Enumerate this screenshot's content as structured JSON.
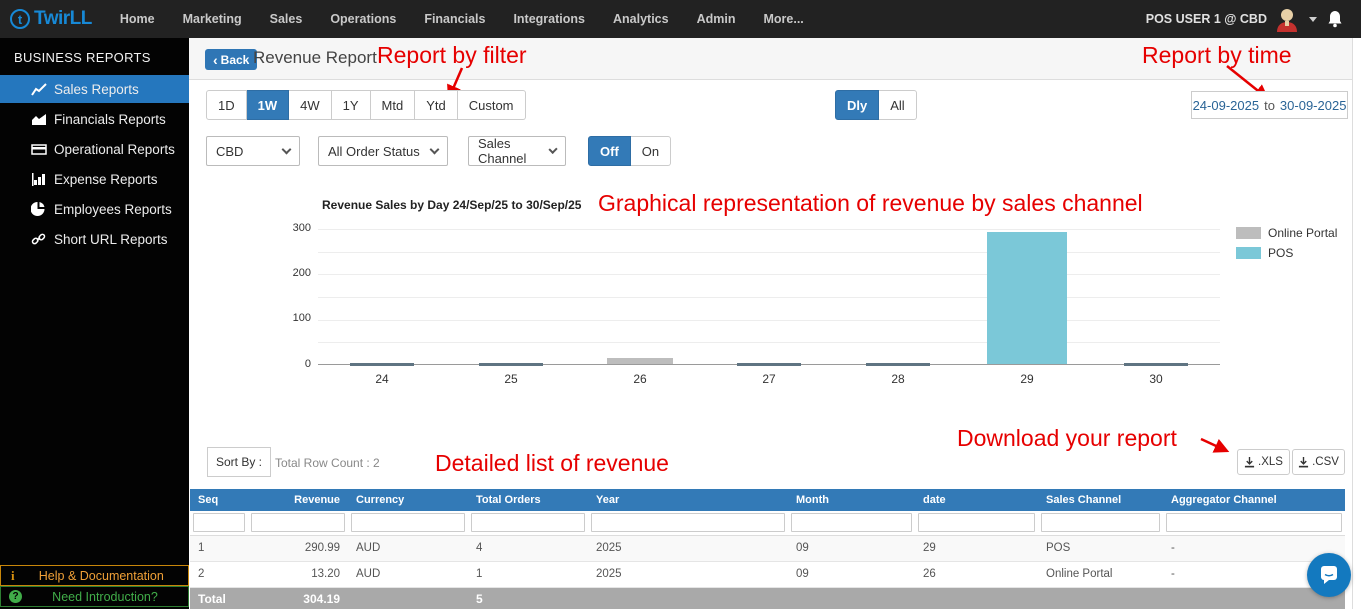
{
  "navbar": {
    "logo_text": "TwirLL",
    "items": [
      "Home",
      "Marketing",
      "Sales",
      "Operations",
      "Financials",
      "Integrations",
      "Analytics",
      "Admin",
      "More..."
    ],
    "user": "POS USER 1 @ CBD"
  },
  "sidebar": {
    "title": "BUSINESS REPORTS",
    "items": [
      {
        "label": "Sales Reports",
        "icon": "line-chart-icon",
        "active": true
      },
      {
        "label": "Financials Reports",
        "icon": "area-chart-icon",
        "active": false
      },
      {
        "label": "Operational Reports",
        "icon": "card-icon",
        "active": false
      },
      {
        "label": "Expense Reports",
        "icon": "bar-chart-icon",
        "active": false
      },
      {
        "label": "Employees Reports",
        "icon": "pie-chart-icon",
        "active": false
      },
      {
        "label": "Short URL Reports",
        "icon": "link-icon",
        "active": false
      }
    ],
    "help_label": "Help & Documentation",
    "intro_label": "Need Introduction?"
  },
  "header": {
    "back_label": "Back",
    "title": "Revenue Report"
  },
  "annotations": {
    "filter": "Report by filter",
    "time": "Report by time",
    "chart": "Graphical representation of revenue by sales channel",
    "list": "Detailed list of revenue",
    "download": "Download your report"
  },
  "filters": {
    "ranges": [
      "1D",
      "1W",
      "4W",
      "1Y",
      "Mtd",
      "Ytd",
      "Custom"
    ],
    "active_range": "1W",
    "granularity": [
      "Dly",
      "All"
    ],
    "active_granularity": "Dly",
    "date_from": "24-09-2025",
    "date_sep": "to",
    "date_to": "30-09-2025",
    "selects": [
      "CBD",
      "All Order Status",
      "Sales Channel"
    ],
    "toggle": [
      "Off",
      "On"
    ],
    "active_toggle": "Off"
  },
  "chart_data": {
    "type": "bar",
    "title": "Revenue Sales by Day 24/Sep/25 to 30/Sep/25",
    "categories": [
      "24",
      "25",
      "26",
      "27",
      "28",
      "29",
      "30"
    ],
    "series": [
      {
        "name": "Online Portal",
        "color": "#bdbdbd",
        "values": [
          0,
          0,
          13.2,
          0,
          0,
          0,
          0
        ]
      },
      {
        "name": "POS",
        "color": "#7bc8d8",
        "values": [
          0,
          0,
          0,
          0,
          0,
          290.99,
          0
        ]
      }
    ],
    "ylim": [
      0,
      300
    ],
    "yticks": [
      0,
      100,
      200,
      300
    ],
    "grid": true,
    "legend_position": "right"
  },
  "table": {
    "sort_by_label": "Sort By :",
    "row_count_label": "Total Row Count : 2",
    "export_xls": ".XLS",
    "export_csv": ".CSV",
    "columns": [
      "Seq",
      "Revenue",
      "Currency",
      "Total Orders",
      "Year",
      "Month",
      "date",
      "Sales Channel",
      "Aggregator Channel"
    ],
    "rows": [
      [
        "1",
        "290.99",
        "AUD",
        "4",
        "2025",
        "09",
        "29",
        "POS",
        "-"
      ],
      [
        "2",
        "13.20",
        "AUD",
        "1",
        "2025",
        "09",
        "26",
        "Online Portal",
        "-"
      ]
    ],
    "total_row": [
      "Total",
      "304.19",
      "",
      "5",
      "",
      "",
      "",
      "",
      ""
    ]
  },
  "colors": {
    "accent": "#337ab7",
    "annotation_red": "#e60000",
    "navbar_bg": "#222222",
    "sidebar_active": "#2577be",
    "total_row_bg": "#a9a9a9"
  }
}
